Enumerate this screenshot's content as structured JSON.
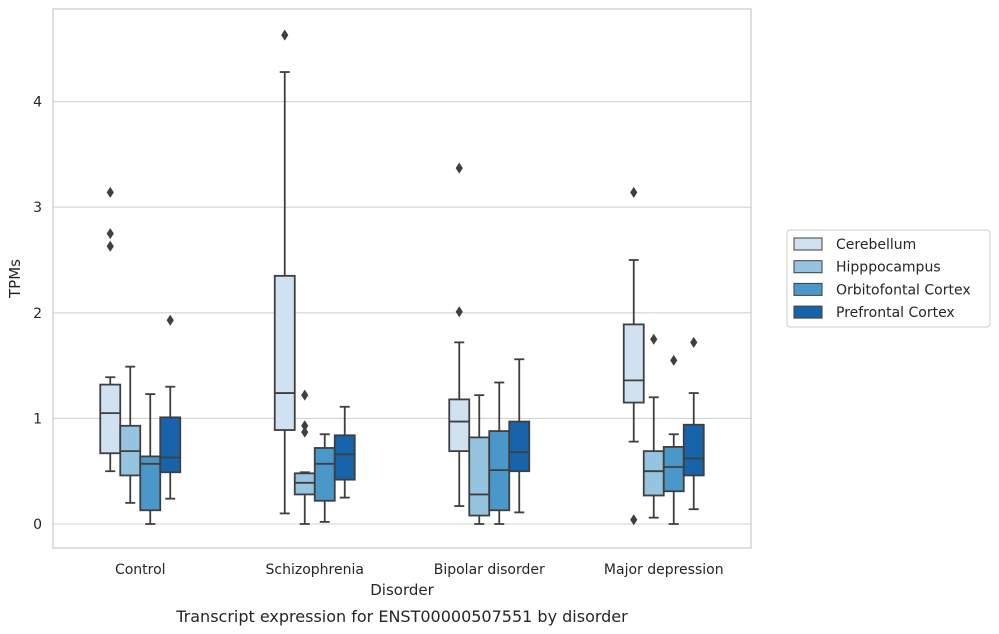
{
  "chart_data": {
    "type": "boxplot",
    "title": "",
    "caption": "Transcript expression for ENST00000507551 by disorder",
    "xlabel": "Disorder",
    "ylabel": "TPMs",
    "ylim": [
      -0.22,
      4.87
    ],
    "yticks": [
      0,
      1,
      2,
      3,
      4
    ],
    "grid": "horizontal",
    "legend_position": "right",
    "categories": [
      "Control",
      "Schizophrenia",
      "Bipolar disorder",
      "Major depression"
    ],
    "series": [
      {
        "name": "Cerebellum",
        "color": "#d0e1f2",
        "boxes": [
          {
            "whislo": 0.5,
            "q1": 0.67,
            "med": 1.05,
            "q3": 1.32,
            "whishi": 1.39,
            "fliers": [
              2.63,
              2.75,
              3.14
            ]
          },
          {
            "whislo": 0.1,
            "q1": 0.89,
            "med": 1.24,
            "q3": 2.35,
            "whishi": 4.28,
            "fliers": [
              4.63
            ]
          },
          {
            "whislo": 0.17,
            "q1": 0.69,
            "med": 0.97,
            "q3": 1.18,
            "whishi": 1.72,
            "fliers": [
              2.01,
              3.37
            ]
          },
          {
            "whislo": 0.78,
            "q1": 1.15,
            "med": 1.36,
            "q3": 1.89,
            "whishi": 2.5,
            "fliers": [
              0.04,
              3.14
            ]
          }
        ]
      },
      {
        "name": "Hipppocampus",
        "color": "#94c4df",
        "boxes": [
          {
            "whislo": 0.2,
            "q1": 0.46,
            "med": 0.69,
            "q3": 0.93,
            "whishi": 1.49,
            "fliers": []
          },
          {
            "whislo": 0.0,
            "q1": 0.28,
            "med": 0.39,
            "q3": 0.48,
            "whishi": 0.49,
            "fliers": [
              0.87,
              0.93,
              1.22
            ]
          },
          {
            "whislo": 0.0,
            "q1": 0.08,
            "med": 0.28,
            "q3": 0.82,
            "whishi": 1.22,
            "fliers": []
          },
          {
            "whislo": 0.06,
            "q1": 0.27,
            "med": 0.5,
            "q3": 0.69,
            "whishi": 1.2,
            "fliers": [
              1.75
            ]
          }
        ]
      },
      {
        "name": "Orbitofontal Cortex",
        "color": "#4a98c9",
        "boxes": [
          {
            "whislo": 0.0,
            "q1": 0.13,
            "med": 0.57,
            "q3": 0.64,
            "whishi": 1.23,
            "fliers": []
          },
          {
            "whislo": 0.02,
            "q1": 0.22,
            "med": 0.57,
            "q3": 0.72,
            "whishi": 0.85,
            "fliers": []
          },
          {
            "whislo": 0.0,
            "q1": 0.13,
            "med": 0.51,
            "q3": 0.88,
            "whishi": 1.34,
            "fliers": []
          },
          {
            "whislo": 0.0,
            "q1": 0.31,
            "med": 0.54,
            "q3": 0.73,
            "whishi": 0.85,
            "fliers": [
              1.55
            ]
          }
        ]
      },
      {
        "name": "Prefrontal Cortex",
        "color": "#1764ab",
        "boxes": [
          {
            "whislo": 0.24,
            "q1": 0.49,
            "med": 0.63,
            "q3": 1.01,
            "whishi": 1.3,
            "fliers": [
              1.93
            ]
          },
          {
            "whislo": 0.25,
            "q1": 0.42,
            "med": 0.66,
            "q3": 0.84,
            "whishi": 1.11,
            "fliers": []
          },
          {
            "whislo": 0.11,
            "q1": 0.5,
            "med": 0.68,
            "q3": 0.97,
            "whishi": 1.56,
            "fliers": []
          },
          {
            "whislo": 0.14,
            "q1": 0.46,
            "med": 0.62,
            "q3": 0.94,
            "whishi": 1.24,
            "fliers": [
              1.72
            ]
          }
        ]
      }
    ]
  }
}
